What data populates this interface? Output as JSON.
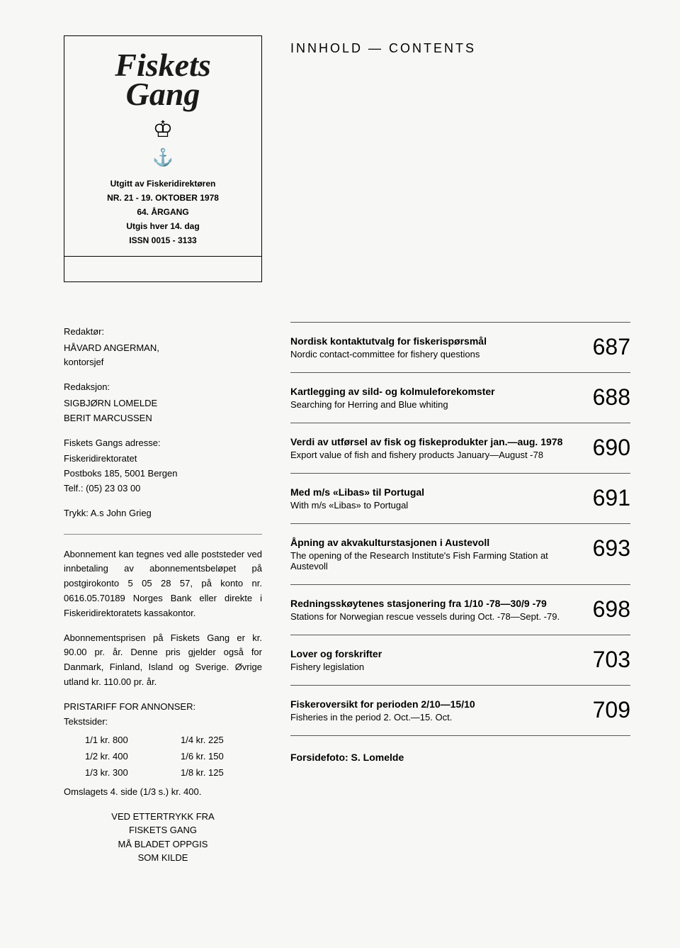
{
  "masthead": {
    "logo": "Fiskets Gang",
    "publisher": "Utgitt av Fiskeridirektøren",
    "issue": "NR. 21 - 19. OKTOBER 1978",
    "volume": "64. ÅRGANG",
    "frequency": "Utgis hver 14. dag",
    "issn": "ISSN 0015 - 3133"
  },
  "editorial": {
    "editor_label": "Redaktør:",
    "editor_name": "HÅVARD ANGERMAN,",
    "editor_title": "kontorsjef",
    "staff_label": "Redaksjon:",
    "staff1": "SIGBJØRN LOMELDE",
    "staff2": "BERIT MARCUSSEN",
    "address_label": "Fiskets Gangs adresse:",
    "address1": "Fiskeridirektoratet",
    "address2": "Postboks 185, 5001 Bergen",
    "address3": "Telf.: (05) 23 03 00",
    "printer": "Trykk: A.s John Grieg",
    "subscription_text": "Abonnement kan tegnes ved alle poststeder ved innbetaling av abonnementsbeløpet på postgirokonto 5 05 28 57, på konto nr. 0616.05.70189 Norges Bank eller direkte i Fiskeridirektoratets kassakontor.",
    "price_text": "Abonnementsprisen på Fiskets Gang er kr. 90.00 pr. år. Denne pris gjelder også for Danmark, Finland, Island og Sverige. Øvrige utland kr. 110.00 pr. år.",
    "tariff_label": "PRISTARIFF FOR ANNONSER:",
    "tariff_sub": "Tekstsider:",
    "prices": {
      "p11": "1/1 kr. 800",
      "p14": "1/4 kr. 225",
      "p12": "1/2 kr. 400",
      "p16": "1/6 kr. 150",
      "p13": "1/3 kr. 300",
      "p18": "1/8 kr. 125"
    },
    "cover_price": "Omslagets 4. side (1/3 s.) kr. 400.",
    "reprint1": "VED ETTERTRYKK FRA",
    "reprint2": "FISKETS GANG",
    "reprint3": "MÅ BLADET OPPGIS",
    "reprint4": "SOM KILDE"
  },
  "heading": "INNHOLD — CONTENTS",
  "contents": [
    {
      "title": "Nordisk kontaktutvalg for fiskerispørsmål",
      "sub": "Nordic contact-committee for fishery questions",
      "page": "687"
    },
    {
      "title": "Kartlegging av sild- og kolmuleforekomster",
      "sub": "Searching for Herring and Blue whiting",
      "page": "688"
    },
    {
      "title": "Verdi av utførsel av fisk og fiskeprodukter jan.—aug. 1978",
      "sub": "Export value of fish and fishery products January—August -78",
      "page": "690"
    },
    {
      "title": "Med m/s «Libas» til Portugal",
      "sub": "With m/s «Libas» to Portugal",
      "page": "691"
    },
    {
      "title": "Åpning av akvakulturstasjonen i Austevoll",
      "sub": "The opening of the Research Institute's Fish Farming Station at Austevoll",
      "page": "693"
    },
    {
      "title": "Redningsskøytenes stasjonering fra 1/10 -78—30/9 -79",
      "sub": "Stations for Norwegian rescue vessels during Oct. -78—Sept. -79.",
      "page": "698"
    },
    {
      "title": "Lover og forskrifter",
      "sub": "Fishery legislation",
      "page": "703"
    },
    {
      "title": "Fiskeroversikt for perioden 2/10—15/10",
      "sub": "Fisheries in the period 2. Oct.—15. Oct.",
      "page": "709"
    }
  ],
  "cover_credit": "Forsidefoto: S. Lomelde"
}
